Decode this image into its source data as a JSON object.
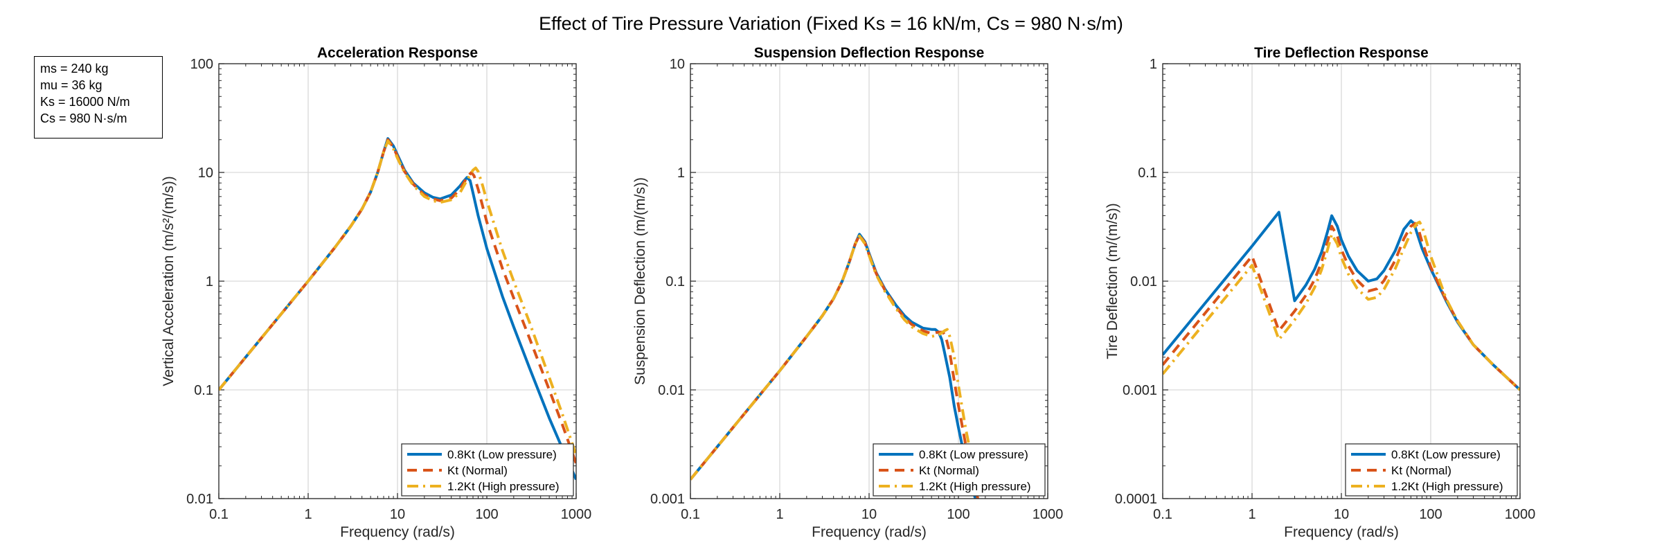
{
  "figure": {
    "title": "Effect of Tire Pressure Variation (Fixed Ks = 16 kN/m, Cs = 980 N·s/m)",
    "params": [
      "ms = 240 kg",
      "mu = 36 kg",
      "Ks = 16000 N/m",
      "Cs = 980 N·s/m"
    ]
  },
  "colors": {
    "low": "#0072BD",
    "normal": "#D95319",
    "high": "#EDB120",
    "grid": "#d9d9d9",
    "axis": "#262626"
  },
  "chart_data": [
    {
      "type": "line",
      "title": "Acceleration Response",
      "xlabel": "Frequency (rad/s)",
      "ylabel": "Vertical Acceleration (m/s²/(m/s))",
      "xscale": "log",
      "yscale": "log",
      "xlim": [
        0.1,
        1000
      ],
      "ylim": [
        0.01,
        100
      ],
      "xticks": [
        "0.1",
        "1",
        "10",
        "100",
        "1000"
      ],
      "yticks": [
        "0.01",
        "0.1",
        "1",
        "10",
        "100"
      ],
      "grid": true,
      "legend_position": "bottom-right",
      "series": [
        {
          "name": "0.8Kt (Low pressure)",
          "style": "solid",
          "x": [
            0.1,
            0.3,
            1,
            2,
            3,
            4,
            5,
            6,
            7,
            7.8,
            9,
            10,
            12,
            15,
            20,
            25,
            30,
            40,
            50,
            55,
            60,
            65,
            70,
            80,
            100,
            150,
            200,
            300,
            500,
            700,
            1000
          ],
          "y": [
            0.1,
            0.3,
            1,
            2.05,
            3.2,
            4.6,
            6.6,
            10,
            15.5,
            20.5,
            17.5,
            14.5,
            10.5,
            8,
            6.5,
            5.9,
            5.7,
            6.2,
            7.5,
            8.3,
            9.0,
            8.4,
            6.5,
            4.0,
            2.0,
            0.72,
            0.38,
            0.16,
            0.055,
            0.029,
            0.015
          ]
        },
        {
          "name": "Kt (Normal)",
          "style": "dashed",
          "x": [
            0.1,
            0.3,
            1,
            2,
            3,
            4,
            5,
            6,
            7,
            7.8,
            9,
            10,
            12,
            15,
            20,
            25,
            30,
            40,
            50,
            60,
            67,
            72,
            80,
            100,
            150,
            200,
            300,
            500,
            700,
            1000
          ],
          "y": [
            0.1,
            0.3,
            1,
            2.05,
            3.2,
            4.6,
            6.6,
            10,
            15.5,
            20,
            17,
            14,
            10.2,
            7.8,
            6.2,
            5.7,
            5.5,
            5.8,
            7.0,
            9.0,
            10.0,
            9.3,
            7.0,
            3.5,
            1.3,
            0.7,
            0.3,
            0.1,
            0.048,
            0.021
          ]
        },
        {
          "name": "1.2Kt (High pressure)",
          "style": "dashdot",
          "x": [
            0.1,
            0.3,
            1,
            2,
            3,
            4,
            5,
            6,
            7,
            7.8,
            9,
            10,
            12,
            15,
            20,
            25,
            30,
            40,
            50,
            60,
            70,
            75,
            80,
            90,
            100,
            150,
            200,
            300,
            500,
            700,
            1000
          ],
          "y": [
            0.1,
            0.3,
            1,
            2.05,
            3.2,
            4.6,
            6.6,
            10,
            15.5,
            19.5,
            16.5,
            13.5,
            10,
            7.6,
            6.0,
            5.5,
            5.3,
            5.6,
            6.5,
            8.5,
            10.5,
            11,
            10.2,
            7.5,
            5.5,
            1.9,
            1.0,
            0.42,
            0.13,
            0.06,
            0.025
          ]
        }
      ]
    },
    {
      "type": "line",
      "title": "Suspension Deflection Response",
      "xlabel": "Frequency (rad/s)",
      "ylabel": "Suspension Deflection (m/(m/s))",
      "xscale": "log",
      "yscale": "log",
      "xlim": [
        0.1,
        1000
      ],
      "ylim": [
        0.001,
        10
      ],
      "xticks": [
        "0.1",
        "1",
        "10",
        "100",
        "1000"
      ],
      "yticks": [
        "0.001",
        "0.01",
        "0.1",
        "1",
        "10"
      ],
      "grid": true,
      "legend_position": "bottom-right",
      "series": [
        {
          "name": "0.8Kt (Low pressure)",
          "style": "solid",
          "x": [
            0.1,
            0.3,
            1,
            2,
            3,
            4,
            5,
            6,
            7,
            7.8,
            9,
            10,
            12,
            15,
            20,
            25,
            30,
            40,
            50,
            55,
            60,
            65,
            70,
            80,
            90,
            100,
            120,
            150,
            170
          ],
          "y": [
            0.0015,
            0.0045,
            0.015,
            0.031,
            0.048,
            0.069,
            0.1,
            0.15,
            0.22,
            0.27,
            0.23,
            0.18,
            0.12,
            0.085,
            0.06,
            0.048,
            0.042,
            0.037,
            0.036,
            0.036,
            0.034,
            0.029,
            0.022,
            0.013,
            0.007,
            0.0045,
            0.0022,
            0.0011,
            0.00075
          ]
        },
        {
          "name": "Kt (Normal)",
          "style": "dashed",
          "x": [
            0.1,
            0.3,
            1,
            2,
            3,
            4,
            5,
            6,
            7,
            7.8,
            9,
            10,
            12,
            15,
            20,
            25,
            30,
            40,
            50,
            60,
            67,
            72,
            80,
            90,
            100,
            120,
            150,
            170
          ],
          "y": [
            0.0015,
            0.0045,
            0.015,
            0.031,
            0.048,
            0.069,
            0.1,
            0.15,
            0.22,
            0.265,
            0.225,
            0.175,
            0.118,
            0.083,
            0.058,
            0.046,
            0.04,
            0.035,
            0.033,
            0.034,
            0.034,
            0.031,
            0.022,
            0.012,
            0.0072,
            0.0032,
            0.0014,
            0.0009
          ]
        },
        {
          "name": "1.2Kt (High pressure)",
          "style": "dashdot",
          "x": [
            0.1,
            0.3,
            1,
            2,
            3,
            4,
            5,
            6,
            7,
            7.8,
            9,
            10,
            12,
            15,
            20,
            25,
            30,
            40,
            50,
            60,
            70,
            75,
            80,
            90,
            100,
            120,
            150,
            180
          ],
          "y": [
            0.0015,
            0.0045,
            0.015,
            0.031,
            0.048,
            0.069,
            0.1,
            0.15,
            0.22,
            0.26,
            0.22,
            0.172,
            0.115,
            0.081,
            0.056,
            0.044,
            0.038,
            0.033,
            0.031,
            0.032,
            0.035,
            0.036,
            0.031,
            0.02,
            0.011,
            0.0045,
            0.0018,
            0.0009
          ]
        }
      ]
    },
    {
      "type": "line",
      "title": "Tire Deflection Response",
      "xlabel": "Frequency (rad/s)",
      "ylabel": "Tire Deflection (m/(m/s))",
      "xscale": "log",
      "yscale": "log",
      "xlim": [
        0.1,
        1000
      ],
      "ylim": [
        0.0001,
        1
      ],
      "xticks": [
        "0.1",
        "1",
        "10",
        "100",
        "1000"
      ],
      "yticks": [
        "0.0001",
        "0.001",
        "0.01",
        "0.1",
        "1"
      ],
      "grid": true,
      "legend_position": "bottom-right",
      "series": [
        {
          "name": "0.8Kt (Low pressure)",
          "style": "solid",
          "x": [
            0.1,
            0.3,
            1,
            2,
            3,
            4,
            5,
            6,
            7,
            7.8,
            9,
            10,
            12,
            15,
            20,
            25,
            30,
            40,
            50,
            60,
            65,
            70,
            80,
            100,
            150,
            200,
            300,
            500,
            1000
          ],
          "y": [
            0.0021,
            0.0063,
            0.021,
            0.043,
            0.0066,
            0.0092,
            0.0128,
            0.0185,
            0.0285,
            0.04,
            0.032,
            0.024,
            0.017,
            0.0125,
            0.01,
            0.0105,
            0.0125,
            0.019,
            0.03,
            0.036,
            0.034,
            0.028,
            0.02,
            0.013,
            0.0065,
            0.0042,
            0.0026,
            0.0017,
            0.001
          ]
        },
        {
          "name": "Kt (Normal)",
          "style": "dashed",
          "x": [
            0.1,
            0.3,
            1,
            2,
            3,
            4,
            5,
            6,
            7,
            7.8,
            9,
            10,
            12,
            15,
            20,
            25,
            30,
            40,
            50,
            60,
            67,
            72,
            80,
            100,
            150,
            200,
            300,
            500,
            1000
          ],
          "y": [
            0.0017,
            0.0051,
            0.017,
            0.0035,
            0.0053,
            0.0074,
            0.0103,
            0.015,
            0.023,
            0.032,
            0.026,
            0.0195,
            0.0138,
            0.0102,
            0.0081,
            0.0085,
            0.0101,
            0.0155,
            0.0245,
            0.032,
            0.034,
            0.031,
            0.023,
            0.0135,
            0.0066,
            0.0043,
            0.0026,
            0.0017,
            0.001
          ]
        },
        {
          "name": "1.2Kt (High pressure)",
          "style": "dashdot",
          "x": [
            0.1,
            0.3,
            1,
            2,
            3,
            4,
            5,
            6,
            7,
            7.8,
            9,
            10,
            12,
            15,
            20,
            25,
            30,
            40,
            50,
            60,
            70,
            75,
            80,
            90,
            100,
            150,
            200,
            300,
            500,
            1000
          ],
          "y": [
            0.0014,
            0.0042,
            0.014,
            0.0029,
            0.0044,
            0.0062,
            0.0087,
            0.0127,
            0.0195,
            0.027,
            0.022,
            0.0165,
            0.0116,
            0.0086,
            0.0068,
            0.0071,
            0.0084,
            0.013,
            0.02,
            0.028,
            0.034,
            0.035,
            0.032,
            0.023,
            0.017,
            0.0068,
            0.0043,
            0.0026,
            0.0017,
            0.001
          ]
        }
      ]
    }
  ]
}
